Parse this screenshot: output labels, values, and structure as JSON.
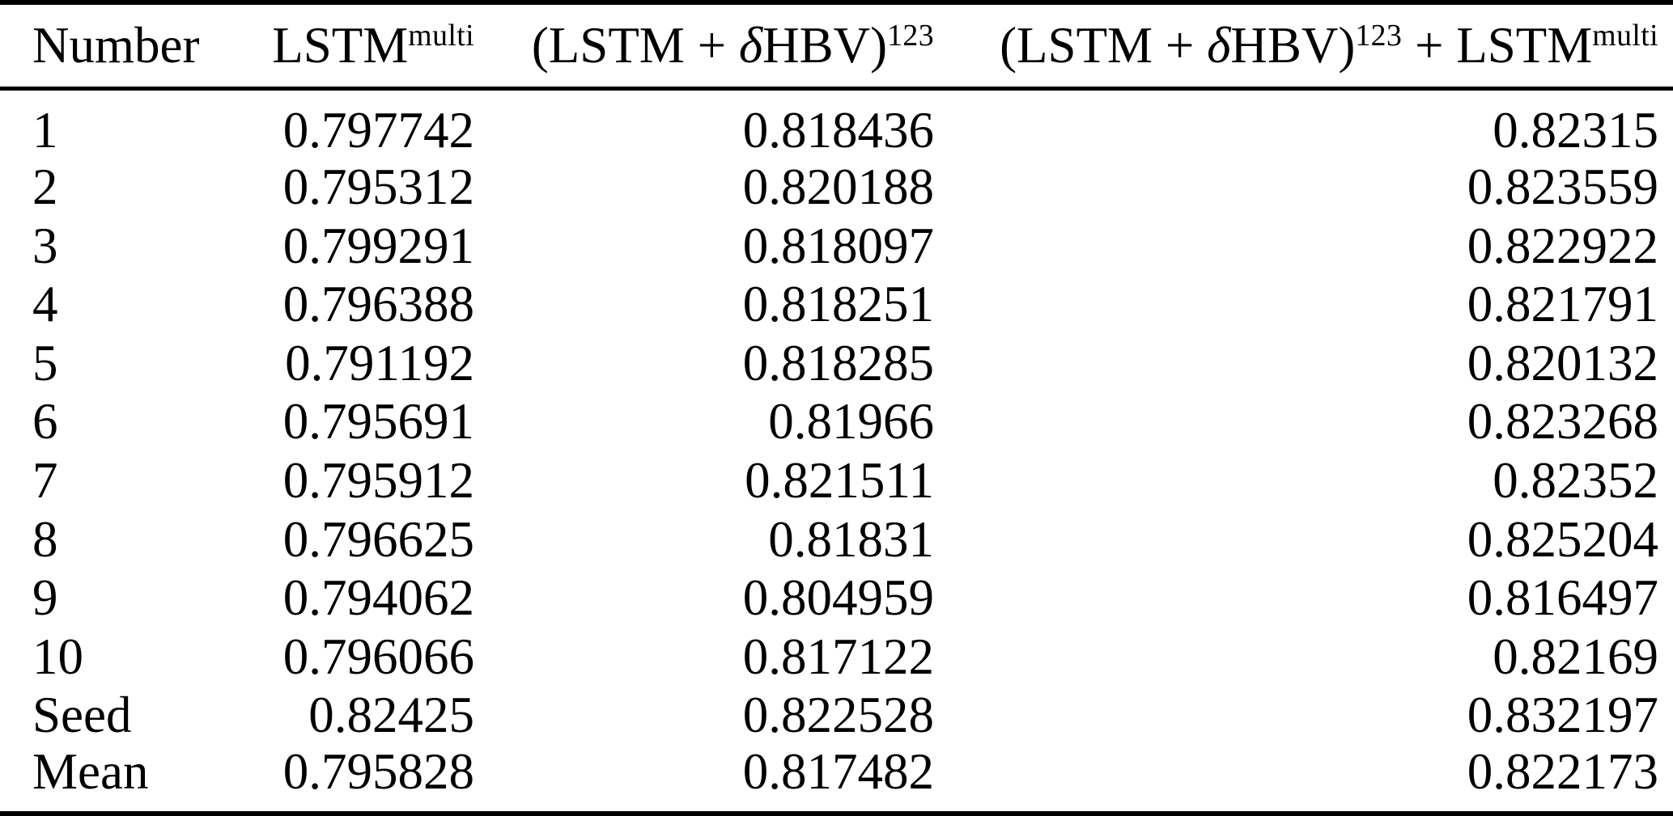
{
  "colors": {
    "rule": "#000000",
    "text": "#000000",
    "background": "#ffffff"
  },
  "table": {
    "headers": [
      {
        "label": "Number"
      },
      {
        "base": "LSTM",
        "sup": "multi"
      },
      {
        "pre": "(LSTM + ",
        "delta": "δ",
        "post": "HBV)",
        "sup": "123"
      },
      {
        "pre": "(LSTM + ",
        "delta": "δ",
        "post": "HBV)",
        "sup": "123",
        "mid": " + LSTM",
        "sup2": "multi"
      }
    ],
    "rows": [
      {
        "label": "1",
        "c1": "0.797742",
        "c2": "0.818436",
        "c3": "0.82315"
      },
      {
        "label": "2",
        "c1": "0.795312",
        "c2": "0.820188",
        "c3": "0.823559"
      },
      {
        "label": "3",
        "c1": "0.799291",
        "c2": "0.818097",
        "c3": "0.822922"
      },
      {
        "label": "4",
        "c1": "0.796388",
        "c2": "0.818251",
        "c3": "0.821791"
      },
      {
        "label": "5",
        "c1": "0.791192",
        "c2": "0.818285",
        "c3": "0.820132"
      },
      {
        "label": "6",
        "c1": "0.795691",
        "c2": "0.81966",
        "c3": "0.823268"
      },
      {
        "label": "7",
        "c1": "0.795912",
        "c2": "0.821511",
        "c3": "0.82352"
      },
      {
        "label": "8",
        "c1": "0.796625",
        "c2": "0.81831",
        "c3": "0.825204"
      },
      {
        "label": "9",
        "c1": "0.794062",
        "c2": "0.804959",
        "c3": "0.816497"
      },
      {
        "label": "10",
        "c1": "0.796066",
        "c2": "0.817122",
        "c3": "0.82169"
      },
      {
        "label": "Seed",
        "c1": "0.82425",
        "c2": "0.822528",
        "c3": "0.832197"
      },
      {
        "label": "Mean",
        "c1": "0.795828",
        "c2": "0.817482",
        "c3": "0.822173"
      }
    ]
  }
}
